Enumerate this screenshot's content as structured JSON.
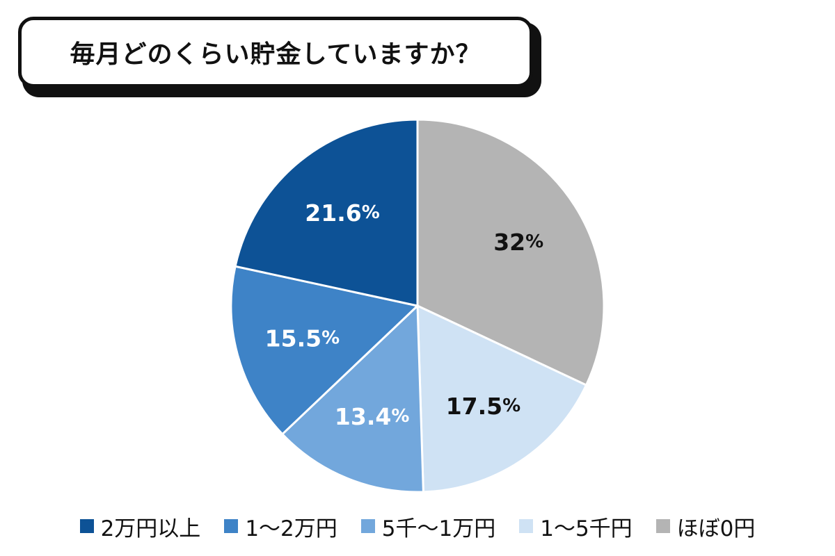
{
  "title": "毎月どのくらい貯金していますか？",
  "chart_data": {
    "type": "pie",
    "title": "毎月どのくらい貯金していますか？",
    "slices": [
      {
        "label": "ほぼ0円",
        "value": 32,
        "display": "32",
        "color": "#b4b4b4",
        "text_color": "#111111"
      },
      {
        "label": "1〜5千円",
        "value": 17.5,
        "display": "17.5",
        "color": "#cfe2f4",
        "text_color": "#111111"
      },
      {
        "label": "5千〜1万円",
        "value": 13.4,
        "display": "13.4",
        "color": "#72a7dc",
        "text_color": "#ffffff"
      },
      {
        "label": "1〜2万円",
        "value": 15.5,
        "display": "15.5",
        "color": "#3e83c7",
        "text_color": "#ffffff"
      },
      {
        "label": "2万円以上",
        "value": 21.6,
        "display": "21.6",
        "color": "#0d5296",
        "text_color": "#ffffff"
      }
    ],
    "unit": "%",
    "start_angle_deg": 0,
    "direction": "clockwise",
    "legend": [
      {
        "label": "2万円以上",
        "color": "#0d5296"
      },
      {
        "label": "1〜2万円",
        "color": "#3e83c7"
      },
      {
        "label": "5千〜1万円",
        "color": "#72a7dc"
      },
      {
        "label": "1〜5千円",
        "color": "#cfe2f4"
      },
      {
        "label": "ほぼ0円",
        "color": "#b4b4b4"
      }
    ],
    "legend_placement": "bottom"
  }
}
